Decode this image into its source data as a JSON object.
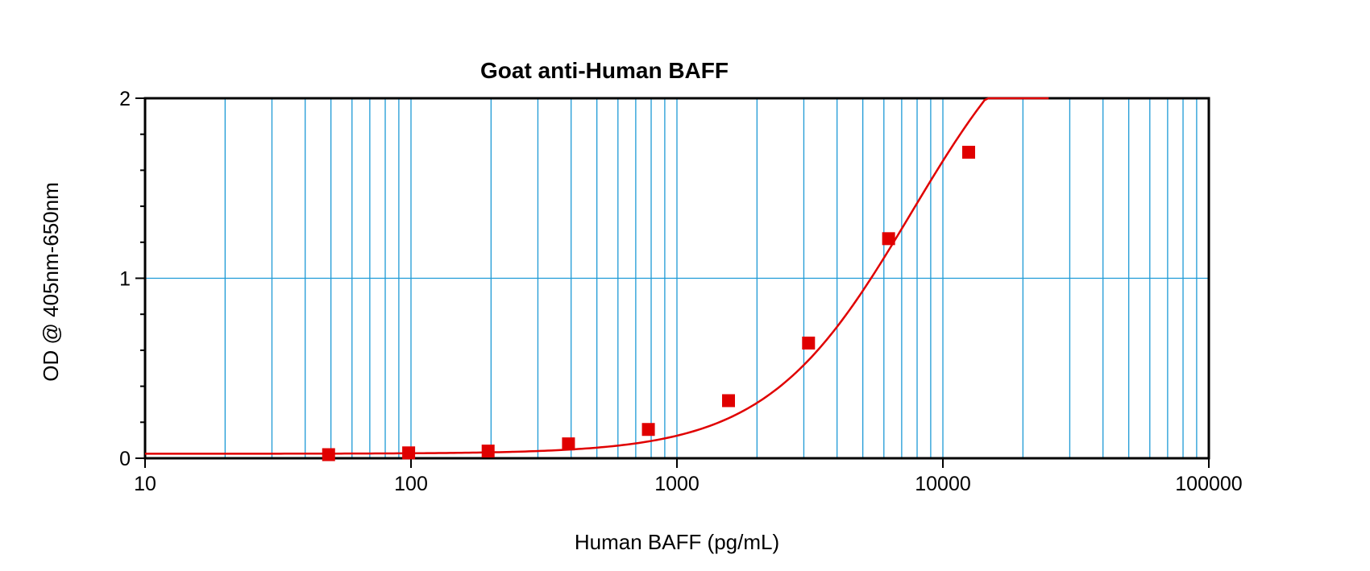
{
  "chart_data": {
    "type": "scatter",
    "title": "Goat anti-Human BAFF",
    "xlabel": "Human BAFF (pg/mL)",
    "ylabel": "OD @ 405nm-650nm",
    "x_scale": "log",
    "xlim": [
      10,
      100000
    ],
    "ylim": [
      0,
      2
    ],
    "x_ticks": [
      10,
      100,
      1000,
      10000,
      100000
    ],
    "x_tick_labels": [
      "10",
      "100",
      "1000",
      "10000",
      "100000"
    ],
    "y_ticks": [
      0,
      1,
      2
    ],
    "y_tick_labels": [
      "0",
      "1",
      "2"
    ],
    "grid": true,
    "grid_color": "#1e9ad6",
    "series_color": "#e00000",
    "marker": "square",
    "points": [
      {
        "x": 49,
        "y": 0.02
      },
      {
        "x": 98,
        "y": 0.03
      },
      {
        "x": 195,
        "y": 0.04
      },
      {
        "x": 391,
        "y": 0.08
      },
      {
        "x": 781,
        "y": 0.16
      },
      {
        "x": 1563,
        "y": 0.32
      },
      {
        "x": 3125,
        "y": 0.64
      },
      {
        "x": 6250,
        "y": 1.22
      },
      {
        "x": 12500,
        "y": 1.7
      }
    ],
    "fit_curve": {
      "type": "4PL",
      "bottom": 0.025,
      "top": 2.7,
      "ec50": 7600,
      "hill": 1.6,
      "x_range": [
        10,
        25000
      ]
    }
  }
}
